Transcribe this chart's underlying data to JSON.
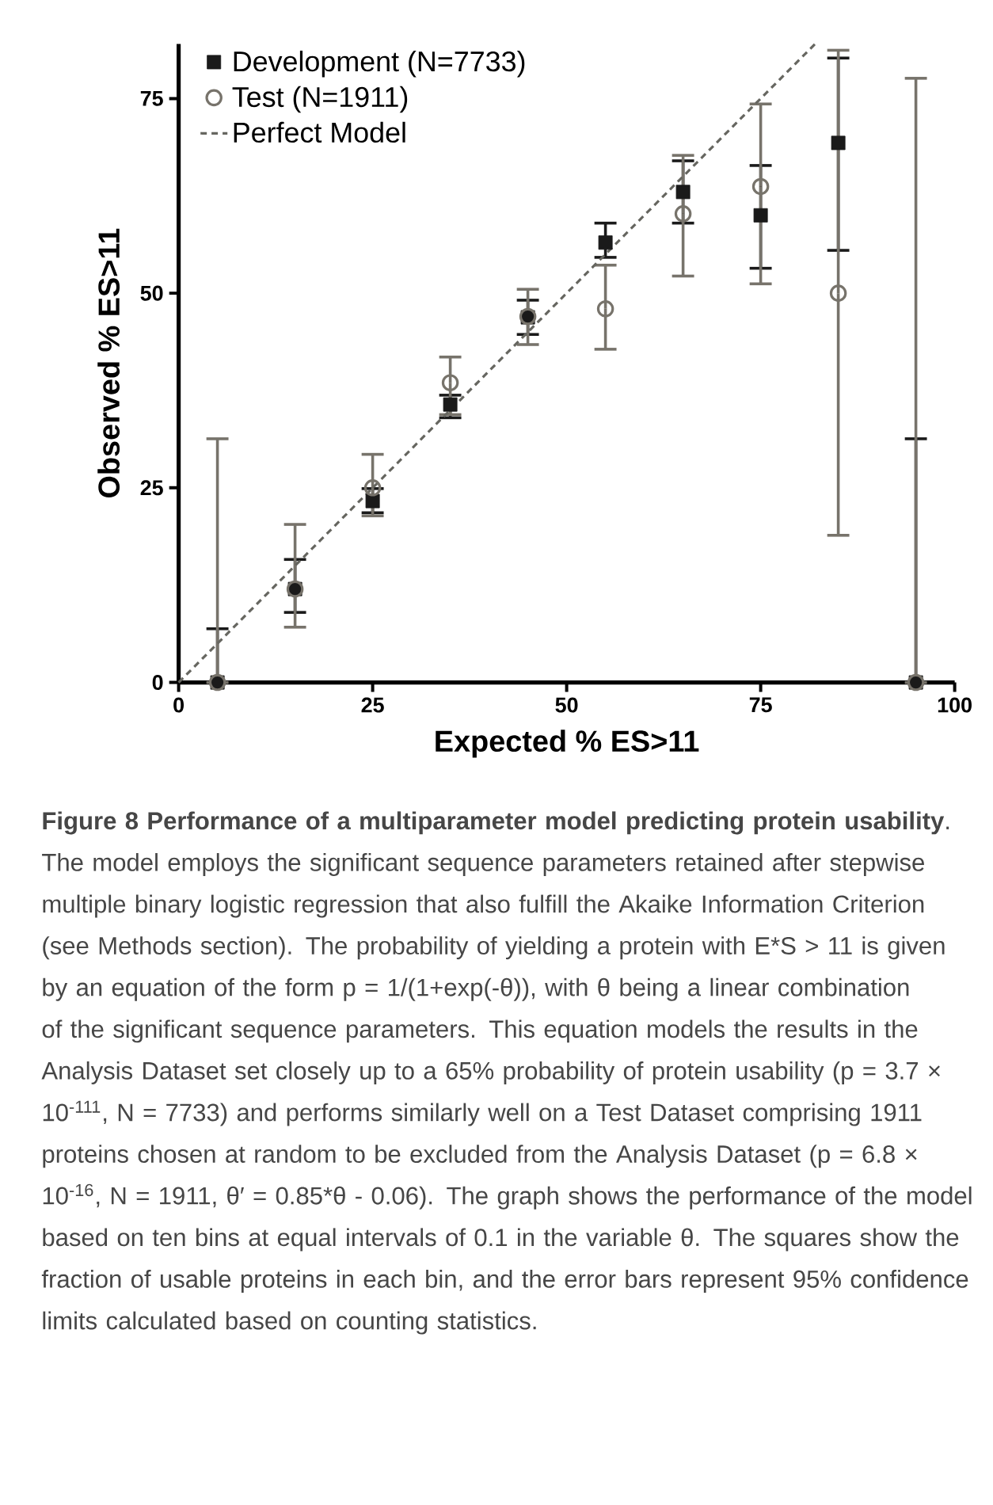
{
  "chart_data": {
    "type": "scatter",
    "xlabel": "Expected % ES>11",
    "ylabel": "Observed % ES>11",
    "xlim": [
      0,
      100
    ],
    "ylim": [
      0,
      82
    ],
    "xticks": [
      0,
      25,
      50,
      75,
      100
    ],
    "yticks": [
      0,
      25,
      50,
      75
    ],
    "grid": false,
    "legend": "top left",
    "series": [
      {
        "name": "Development (N=7733)",
        "marker": "square",
        "color": "#1a1a1a",
        "x": [
          5,
          15,
          25,
          35,
          45,
          55,
          65,
          75,
          85,
          95
        ],
        "values": [
          0,
          12,
          23.3,
          35.7,
          46.9,
          56.5,
          63,
          60,
          69.3,
          0
        ],
        "errors": [
          [
            0,
            6.9
          ],
          [
            9,
            15.8
          ],
          [
            21.8,
            24.9
          ],
          [
            34,
            36.9
          ],
          [
            44.7,
            49.1
          ],
          [
            54.6,
            59
          ],
          [
            59,
            67
          ],
          [
            53.2,
            66.4
          ],
          [
            55.5,
            80.2
          ],
          [
            0,
            31.3
          ]
        ]
      },
      {
        "name": "Test (N=1911)",
        "marker": "circle",
        "color": "#77736b",
        "x": [
          5,
          15,
          25,
          35,
          45,
          55,
          65,
          75,
          85,
          95
        ],
        "values": [
          0,
          12,
          25,
          38.5,
          47,
          48,
          60.2,
          63.7,
          50,
          0
        ],
        "errors": [
          [
            0,
            31.3
          ],
          [
            7.1,
            20.3
          ],
          [
            21.4,
            29.3
          ],
          [
            34.4,
            41.8
          ],
          [
            43.4,
            50.5
          ],
          [
            42.8,
            53.6
          ],
          [
            52.2,
            67.7
          ],
          [
            51.2,
            74.3
          ],
          [
            18.9,
            81.2
          ],
          [
            0,
            77.6
          ]
        ]
      },
      {
        "name": "Perfect Model",
        "type": "line",
        "marker": "none",
        "line_style": "dashed",
        "color": "#666660",
        "x": [
          0,
          82
        ],
        "values": [
          0,
          82
        ]
      }
    ],
    "annotations": [
      "**Figure 8 Performance of a multiparameter model predicting protein usability**. The model employs the significant sequence parameters retained after stepwise multiple binary logistic regression that also fulfill the Akaike Information Criterion (see Methods section). The probability of yielding a protein with E*S > 11 is given by an equation of the form p = 1/(1+exp(-θ)), with θ being a linear combination of the significant sequence parameters. This equation models the results in the Analysis Dataset set closely up to a 65% probability of protein usability (p = 3.7 × 10$^{-111}$, N = 7733) and performs similarly well on a Test Dataset comprising 1911 proteins chosen at random to be excluded from the Analysis Dataset (p = 6.8 × 10$^{-16}$, N = 1911, θ′ = 0.85*θ - 0.06). The graph shows the performance of the model based on ten bins at equal intervals of 0.1 in the variable θ. The squares show the fraction of usable proteins in each bin, and the error bars represent 95% confidence limits calculated based on counting statistics."
    ]
  }
}
